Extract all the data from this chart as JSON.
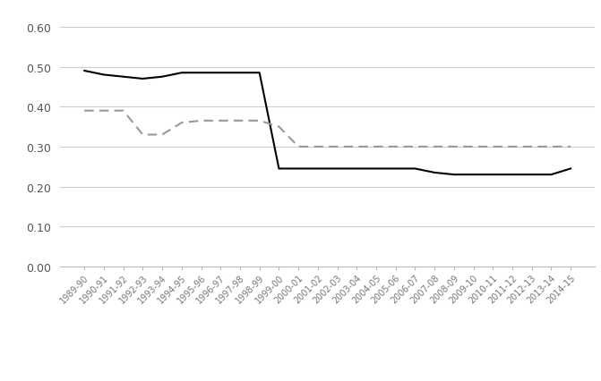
{
  "years": [
    "1989-90",
    "1990-91",
    "1991-92",
    "1992-93",
    "1993-94",
    "1994-95",
    "1995-96",
    "1996-97",
    "1997-98",
    "1998-99",
    "1999-00",
    "2000-01",
    "2001-02",
    "2002-03",
    "2003-04",
    "2004-05",
    "2005-06",
    "2006-07",
    "2007-08",
    "2008-09",
    "2009-10",
    "2010-11",
    "2011-12",
    "2012-13",
    "2013-14",
    "2014-15"
  ],
  "personal_tax_rate": [
    0.49,
    0.48,
    0.475,
    0.47,
    0.475,
    0.485,
    0.485,
    0.485,
    0.485,
    0.485,
    0.245,
    0.245,
    0.245,
    0.245,
    0.245,
    0.245,
    0.245,
    0.245,
    0.235,
    0.23,
    0.23,
    0.23,
    0.23,
    0.23,
    0.23,
    0.245
  ],
  "company_tax_rate": [
    0.39,
    0.39,
    0.39,
    0.33,
    0.33,
    0.36,
    0.365,
    0.365,
    0.365,
    0.365,
    0.35,
    0.3,
    0.3,
    0.3,
    0.3,
    0.3,
    0.3,
    0.3,
    0.3,
    0.3,
    0.3,
    0.3,
    0.3,
    0.3,
    0.3,
    0.3
  ],
  "personal_color": "#000000",
  "company_color": "#999999",
  "ylim": [
    0.0,
    0.65
  ],
  "yticks": [
    0.0,
    0.1,
    0.2,
    0.3,
    0.4,
    0.5,
    0.6
  ],
  "bg_color": "#ffffff",
  "grid_color": "#cccccc"
}
